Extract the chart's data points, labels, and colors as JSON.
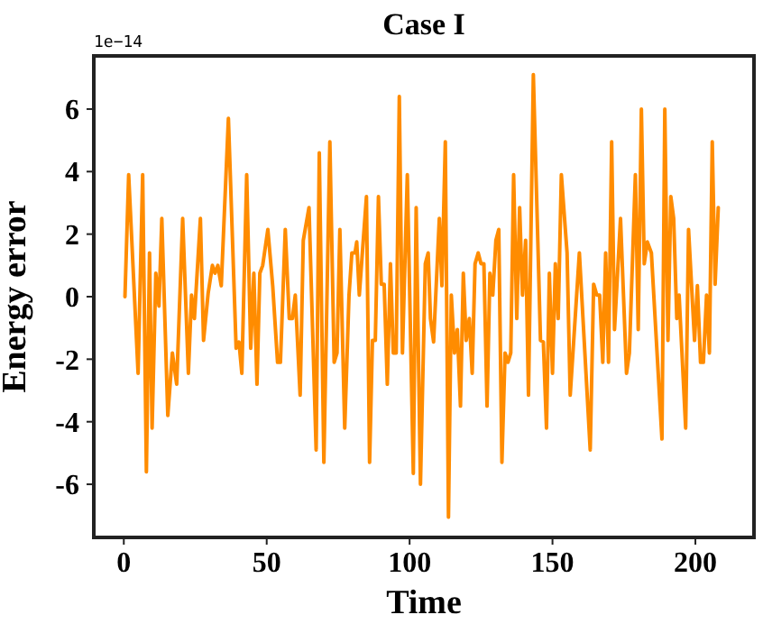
{
  "chart_data": {
    "type": "line",
    "title": "Case I",
    "xlabel": "Time",
    "ylabel": "Energy error",
    "annotations": [
      "1e−14"
    ],
    "xlim": [
      -10.5,
      220.5
    ],
    "ylim": [
      -7.7,
      7.7
    ],
    "xticks": [
      0,
      50,
      100,
      150,
      200
    ],
    "yticks": [
      -6,
      -4,
      -2,
      0,
      2,
      4,
      6
    ],
    "series": [
      {
        "color": "#ff8c00",
        "x": [
          0.4,
          1.7,
          5,
          6.6,
          7.9,
          9,
          9.9,
          11.2,
          12.3,
          13.3,
          15.4,
          17,
          18.5,
          20.6,
          22.6,
          23.7,
          24.7,
          26.8,
          27.9,
          29.5,
          31,
          31.9,
          32.9,
          34.1,
          36.6,
          39.3,
          40.3,
          41.3,
          43,
          44.4,
          45.5,
          46.6,
          47.6,
          48.6,
          50.4,
          52.1,
          53.8,
          54.8,
          56.5,
          57.9,
          59,
          60,
          61.7,
          62.8,
          64.8,
          67.3,
          68.4,
          70,
          72.1,
          73.6,
          74.6,
          75.6,
          77.3,
          78.8,
          79.8,
          80.9,
          81.5,
          82.4,
          84.9,
          86,
          87,
          88,
          89.1,
          90.1,
          91.1,
          92.2,
          93.3,
          94.3,
          95.3,
          96.4,
          97.5,
          99.2,
          101.3,
          102.3,
          103.8,
          105.5,
          106.5,
          107.3,
          108.4,
          110.4,
          111.3,
          112.5,
          113.6,
          114.6,
          115.7,
          116.7,
          117.8,
          118.8,
          119.8,
          120.9,
          121.9,
          122.9,
          124,
          125,
          126,
          127.1,
          128.1,
          129.1,
          130.2,
          131.2,
          132.3,
          133.4,
          134.4,
          135.4,
          136.4,
          137.5,
          138.5,
          139.5,
          140.6,
          141.6,
          143.3,
          145.8,
          146.8,
          147.9,
          148.9,
          150,
          151,
          152,
          153.1,
          155.1,
          156.2,
          159.4,
          163.2,
          164.4,
          165.5,
          166.5,
          167.6,
          168.6,
          169.6,
          170.7,
          171.7,
          173.8,
          175.9,
          176.9,
          179,
          180,
          181.1,
          182.1,
          183.2,
          184.6,
          188.3,
          189.3,
          190.4,
          191.4,
          192.4,
          193.5,
          194.3,
          196.6,
          197.6,
          199.7,
          200.7,
          201.8,
          202.8,
          203.9,
          204.9,
          205.9,
          206.9,
          208
        ],
        "values": [
          0,
          3.9,
          -2.45,
          3.9,
          -5.6,
          1.4,
          -4.2,
          0.75,
          -0.3,
          2.5,
          -3.8,
          -1.8,
          -2.8,
          2.5,
          -2.45,
          0.05,
          -0.7,
          2.5,
          -1.4,
          0.1,
          1,
          0.75,
          1,
          0.35,
          5.7,
          -1.65,
          -1.45,
          -2.45,
          3.9,
          -1.65,
          0.75,
          -2.8,
          0.75,
          1,
          2.15,
          0.35,
          -2.1,
          -2.1,
          2.15,
          -0.7,
          -0.7,
          0.05,
          -3.15,
          1.8,
          2.85,
          -4.9,
          4.6,
          -5.3,
          4.95,
          -2.1,
          -1.8,
          2.15,
          -4.2,
          0.05,
          1.4,
          1.4,
          1.75,
          0.05,
          3.2,
          -5.3,
          -1.4,
          -1.4,
          3.2,
          0.4,
          0.4,
          -2.8,
          1.05,
          -1.8,
          -1.8,
          6.4,
          -1.8,
          3.9,
          -5.65,
          2.85,
          -6,
          1.05,
          1.4,
          -0.7,
          -1.45,
          2.5,
          0.35,
          4.95,
          -7.05,
          0.05,
          -1.8,
          -1.05,
          -3.5,
          0.75,
          -1.4,
          -0.7,
          -2.45,
          1.05,
          1.4,
          1.05,
          1.05,
          -3.5,
          0.75,
          0.05,
          1.8,
          2.15,
          -5.3,
          -1.8,
          -2.1,
          -1.8,
          3.9,
          -0.7,
          2.85,
          0.05,
          1.8,
          -3.15,
          7.1,
          -1.4,
          -1.45,
          -4.2,
          0.75,
          -2.45,
          1.05,
          -0.7,
          3.9,
          1.4,
          -3.15,
          1.4,
          -4.9,
          0.4,
          0.05,
          0.05,
          -2.1,
          1.4,
          -2.1,
          4.95,
          -1.05,
          2.5,
          -2.45,
          -1.8,
          3.9,
          -1.05,
          6,
          1.05,
          1.75,
          1.4,
          -4.55,
          6,
          -1.4,
          3.2,
          2.5,
          -0.7,
          0.05,
          -4.2,
          2.15,
          -1.4,
          0.35,
          -2.1,
          -2.1,
          0.05,
          -1.8,
          4.95,
          0.4,
          2.85
        ]
      }
    ]
  }
}
